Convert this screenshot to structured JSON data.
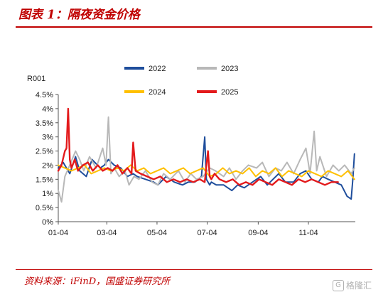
{
  "header": {
    "title": "图表 1：隔夜资金价格"
  },
  "footer": {
    "source": "资料来源：iFinD，国盛证券研究所",
    "watermark": "格隆汇",
    "watermark_logo": "G"
  },
  "colors": {
    "accent": "#c00000",
    "2022": "#1f4e9c",
    "2023": "#b8b8b8",
    "2024": "#ffc000",
    "2025": "#e31a1c"
  },
  "chart_data": {
    "type": "line",
    "ylabel": "R001",
    "ylim": [
      0,
      4.5
    ],
    "yticks": [
      "0%",
      "0.5%",
      "1%",
      "1.5%",
      "2%",
      "2.5%",
      "3%",
      "3.5%",
      "4%",
      "4.5%"
    ],
    "xlim": [
      4,
      365
    ],
    "xticks": [
      {
        "label": "01-04",
        "x": 4
      },
      {
        "label": "03-04",
        "x": 63
      },
      {
        "label": "05-04",
        "x": 124
      },
      {
        "label": "07-04",
        "x": 185
      },
      {
        "label": "09-04",
        "x": 247
      },
      {
        "label": "11-04",
        "x": 308
      }
    ],
    "legend": {
      "placement": "top"
    },
    "series": [
      {
        "name": "2022",
        "x": [
          4,
          10,
          18,
          25,
          30,
          38,
          45,
          55,
          60,
          65,
          72,
          80,
          88,
          95,
          100,
          110,
          120,
          125,
          135,
          145,
          155,
          162,
          170,
          178,
          182,
          184,
          186,
          188,
          190,
          196,
          205,
          215,
          222,
          230,
          240,
          250,
          258,
          265,
          272,
          280,
          290,
          298,
          305,
          312,
          320,
          325,
          332,
          340,
          348,
          355,
          360,
          362,
          364
        ],
        "values": [
          1.9,
          2.1,
          1.7,
          2.3,
          1.8,
          1.6,
          2.2,
          1.9,
          2.0,
          2.2,
          2.0,
          1.9,
          1.6,
          1.7,
          1.6,
          1.5,
          1.4,
          1.3,
          1.6,
          1.4,
          1.3,
          1.4,
          1.4,
          1.6,
          3.0,
          1.5,
          1.4,
          1.3,
          1.4,
          1.3,
          1.3,
          1.1,
          1.3,
          1.2,
          1.4,
          1.6,
          1.3,
          1.5,
          1.7,
          1.4,
          1.4,
          1.7,
          1.8,
          1.5,
          1.4,
          1.6,
          1.5,
          1.4,
          1.3,
          0.9,
          0.8,
          1.5,
          2.4
        ]
      },
      {
        "name": "2023",
        "x": [
          4,
          8,
          12,
          18,
          25,
          30,
          35,
          42,
          50,
          58,
          62,
          65,
          68,
          72,
          78,
          85,
          90,
          96,
          102,
          110,
          118,
          125,
          132,
          140,
          150,
          158,
          165,
          172,
          180,
          188,
          195,
          205,
          212,
          220,
          228,
          235,
          245,
          252,
          260,
          268,
          275,
          282,
          290,
          298,
          305,
          310,
          315,
          318,
          322,
          330,
          338,
          345,
          352,
          360,
          364
        ],
        "values": [
          1.1,
          0.7,
          1.6,
          2.0,
          2.5,
          2.2,
          1.8,
          2.3,
          1.9,
          2.6,
          2.0,
          3.7,
          1.7,
          1.9,
          1.6,
          1.8,
          1.3,
          1.6,
          1.5,
          1.8,
          1.4,
          1.3,
          1.7,
          1.5,
          1.8,
          1.4,
          1.7,
          1.5,
          1.6,
          1.9,
          1.8,
          1.6,
          1.9,
          1.5,
          1.8,
          2.0,
          1.9,
          2.1,
          1.6,
          1.9,
          1.8,
          2.1,
          1.7,
          2.2,
          2.6,
          1.7,
          3.2,
          1.8,
          2.3,
          1.6,
          2.0,
          1.8,
          2.0,
          1.7,
          1.9
        ]
      },
      {
        "name": "2024",
        "x": [
          4,
          12,
          20,
          28,
          36,
          44,
          52,
          60,
          68,
          76,
          84,
          92,
          100,
          108,
          116,
          124,
          132,
          140,
          148,
          156,
          164,
          172,
          180,
          188,
          196,
          204,
          212,
          220,
          228,
          236,
          244,
          252,
          260,
          268,
          276,
          284,
          292,
          300,
          308,
          316,
          324,
          332,
          340,
          348,
          356,
          364
        ],
        "values": [
          2.0,
          1.9,
          1.8,
          1.9,
          2.0,
          1.7,
          1.8,
          1.9,
          1.8,
          1.9,
          1.8,
          2.0,
          1.8,
          1.9,
          1.7,
          1.8,
          1.9,
          1.7,
          1.8,
          1.9,
          1.7,
          1.8,
          1.9,
          1.6,
          1.7,
          1.9,
          1.7,
          1.8,
          1.7,
          1.9,
          1.6,
          1.8,
          1.7,
          1.9,
          1.6,
          1.8,
          1.7,
          1.6,
          1.8,
          1.7,
          1.6,
          1.8,
          1.7,
          1.6,
          1.8,
          1.5
        ]
      },
      {
        "name": "2025",
        "x": [
          4,
          8,
          12,
          14,
          16,
          18,
          20,
          24,
          28,
          34,
          40,
          46,
          52,
          58,
          64,
          70,
          76,
          82,
          88,
          93,
          95,
          98,
          104,
          112,
          120,
          128,
          136,
          144,
          152,
          160,
          168,
          176,
          182,
          186,
          188,
          190,
          194,
          200,
          208,
          216,
          224,
          232,
          240,
          248,
          256,
          264,
          272,
          280,
          288,
          296,
          304,
          312,
          320,
          328,
          336,
          344
        ],
        "values": [
          1.8,
          2.0,
          2.5,
          2.6,
          4.0,
          2.2,
          1.9,
          2.2,
          1.8,
          2.0,
          2.1,
          1.8,
          2.0,
          1.8,
          1.9,
          1.8,
          2.0,
          1.7,
          1.9,
          1.7,
          2.8,
          1.8,
          1.7,
          1.6,
          1.5,
          1.6,
          1.4,
          1.5,
          1.4,
          1.5,
          1.4,
          1.5,
          1.4,
          2.5,
          1.6,
          1.5,
          1.7,
          1.5,
          1.4,
          1.5,
          1.3,
          1.4,
          1.3,
          1.5,
          1.4,
          1.3,
          1.5,
          1.4,
          1.3,
          1.5,
          1.4,
          1.5,
          1.4,
          1.3,
          1.4,
          1.4
        ]
      }
    ]
  }
}
